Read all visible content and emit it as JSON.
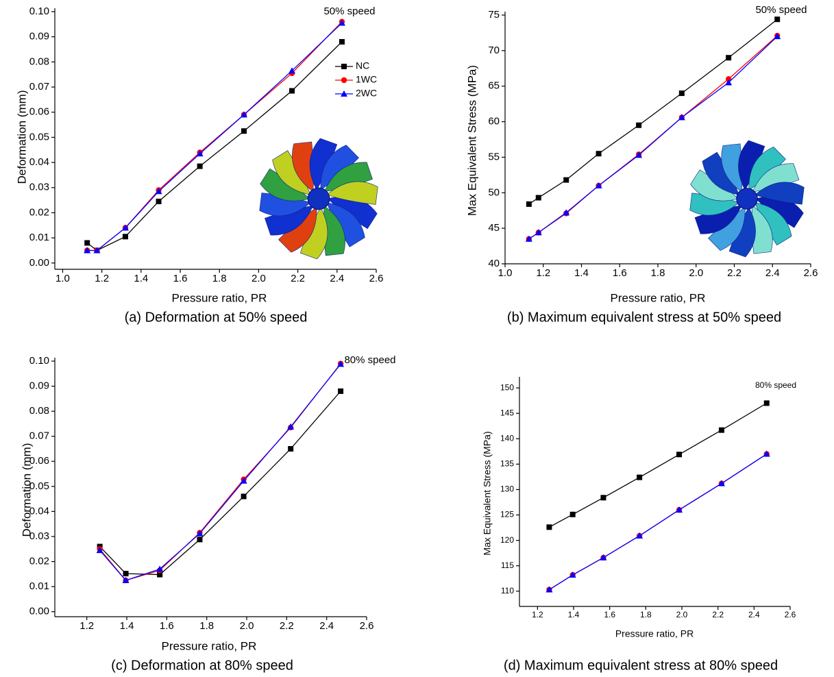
{
  "chart_data": [
    {
      "type": "line",
      "caption": "(a) Deformation at 50% speed",
      "annotation": "50% speed",
      "x_label": "Pressure ratio, PR",
      "y_label": "Deformation (mm)",
      "xlim": [
        0.96,
        2.6
      ],
      "ylim": [
        -0.0025,
        0.1
      ],
      "xticks": [
        {
          "value": 1,
          "label": "1.0"
        },
        1.2,
        1.4,
        1.6,
        1.8,
        {
          "value": 2,
          "label": "2.0"
        },
        2.2,
        2.4,
        2.6
      ],
      "yticks": [
        {
          "value": 0,
          "label": "0.00"
        },
        {
          "value": 0.01,
          "label": "0.01"
        },
        {
          "value": 0.02,
          "label": "0.02"
        },
        {
          "value": 0.03,
          "label": "0.03"
        },
        {
          "value": 0.04,
          "label": "0.04"
        },
        {
          "value": 0.05,
          "label": "0.05"
        },
        {
          "value": 0.06,
          "label": "0.06"
        },
        {
          "value": 0.07,
          "label": "0.07"
        },
        {
          "value": 0.08,
          "label": "0.08"
        },
        {
          "value": 0.09,
          "label": "0.09"
        },
        {
          "value": 0.1,
          "label": "0.10"
        }
      ],
      "legend": "right",
      "x": [
        1.125,
        1.175,
        1.32,
        1.49,
        1.7,
        1.925,
        2.17,
        2.425
      ],
      "series": [
        {
          "name": "NC",
          "color": "#000000",
          "marker": "square",
          "values": [
            0.008,
            0.005,
            0.0105,
            0.0245,
            0.0385,
            0.0525,
            0.0685,
            0.088
          ]
        },
        {
          "name": "1WC",
          "color": "#ff0000",
          "marker": "circle",
          "values": [
            0.005,
            0.005,
            0.014,
            0.029,
            0.044,
            0.059,
            0.0755,
            0.096
          ]
        },
        {
          "name": "2WC",
          "color": "#0000ff",
          "marker": "triangle",
          "values": [
            0.005,
            0.005,
            0.014,
            0.0285,
            0.0435,
            0.059,
            0.0765,
            0.0955
          ]
        }
      ]
    },
    {
      "type": "line",
      "caption": "(b) Maximum equivalent stress at 50% speed",
      "annotation": "50% speed",
      "x_label": "Pressure ratio, PR",
      "y_label": "Max Equivalent Stress (MPa)",
      "xlim": [
        1.0,
        2.6
      ],
      "ylim": [
        40,
        75
      ],
      "xticks": [
        {
          "value": 1,
          "label": "1.0"
        },
        1.2,
        1.4,
        1.6,
        1.8,
        {
          "value": 2,
          "label": "2.0"
        },
        2.2,
        2.4,
        2.6
      ],
      "yticks": [
        40,
        45,
        50,
        55,
        60,
        65,
        70,
        75
      ],
      "x": [
        1.125,
        1.175,
        1.32,
        1.49,
        1.7,
        1.925,
        2.17,
        2.425
      ],
      "series": [
        {
          "color": "#000000",
          "marker": "square",
          "values": [
            48.4,
            49.3,
            51.8,
            55.5,
            59.5,
            64,
            69,
            74.4
          ]
        },
        {
          "color": "#ff0000",
          "marker": "circle",
          "values": [
            43.5,
            44.4,
            47.1,
            51,
            55.4,
            60.6,
            66,
            72.1
          ]
        },
        {
          "color": "#0000ff",
          "marker": "triangle",
          "values": [
            43.5,
            44.4,
            47.2,
            51,
            55.3,
            60.6,
            65.5,
            72
          ]
        }
      ]
    },
    {
      "type": "line",
      "caption": "(c) Deformation at 80% speed",
      "annotation": "80% speed",
      "x_label": "Pressure ratio, PR",
      "y_label": "Deformation (mm)",
      "xlim": [
        1.04,
        2.6
      ],
      "ylim": [
        -0.002,
        0.1
      ],
      "xticks": [
        1.2,
        1.4,
        1.6,
        1.8,
        {
          "value": 2,
          "label": "2.0"
        },
        2.2,
        2.4,
        2.6
      ],
      "yticks": [
        {
          "value": 0,
          "label": "0.00"
        },
        {
          "value": 0.01,
          "label": "0.01"
        },
        {
          "value": 0.02,
          "label": "0.02"
        },
        {
          "value": 0.03,
          "label": "0.03"
        },
        {
          "value": 0.04,
          "label": "0.04"
        },
        {
          "value": 0.05,
          "label": "0.05"
        },
        {
          "value": 0.06,
          "label": "0.06"
        },
        {
          "value": 0.07,
          "label": "0.07"
        },
        {
          "value": 0.08,
          "label": "0.08"
        },
        {
          "value": 0.09,
          "label": "0.09"
        },
        {
          "value": 0.1,
          "label": "0.10"
        }
      ],
      "x": [
        1.265,
        1.395,
        1.565,
        1.765,
        1.985,
        2.22,
        2.47
      ],
      "series": [
        {
          "color": "#000000",
          "marker": "square",
          "values": [
            0.026,
            0.0152,
            0.0148,
            0.0288,
            0.046,
            0.065,
            0.088
          ]
        },
        {
          "color": "#ff0000",
          "marker": "circle",
          "values": [
            0.025,
            0.0125,
            0.0165,
            0.0315,
            0.0528,
            0.0735,
            0.099
          ]
        },
        {
          "color": "#0000ff",
          "marker": "triangle",
          "values": [
            0.0245,
            0.0125,
            0.017,
            0.0312,
            0.0522,
            0.0738,
            0.0988
          ]
        }
      ]
    },
    {
      "type": "line",
      "caption": "(d) Maximum equivalent stress at 80% speed",
      "annotation": "80% speed",
      "x_label": "Pressure ratio, PR",
      "y_label": "Max Equivalent Stress (MPa)",
      "xlim": [
        1.1,
        2.6
      ],
      "ylim": [
        107,
        151.5
      ],
      "xticks": [
        1.2,
        1.4,
        1.6,
        1.8,
        {
          "value": 2,
          "label": "2.0"
        },
        2.2,
        2.4,
        2.6
      ],
      "yticks": [
        110,
        115,
        120,
        125,
        130,
        135,
        140,
        145,
        150
      ],
      "x": [
        1.265,
        1.395,
        1.565,
        1.765,
        1.985,
        2.22,
        2.47
      ],
      "series": [
        {
          "color": "#000000",
          "marker": "square",
          "values": [
            122.6,
            125.1,
            128.4,
            132.4,
            136.9,
            141.7,
            147
          ]
        },
        {
          "color": "#ff0000",
          "marker": "circle",
          "values": [
            110.3,
            113.2,
            116.6,
            120.9,
            126,
            131.2,
            137
          ]
        },
        {
          "color": "#0000ff",
          "marker": "triangle",
          "values": [
            110.3,
            113.2,
            116.6,
            120.9,
            126,
            131.2,
            137
          ]
        }
      ]
    }
  ]
}
